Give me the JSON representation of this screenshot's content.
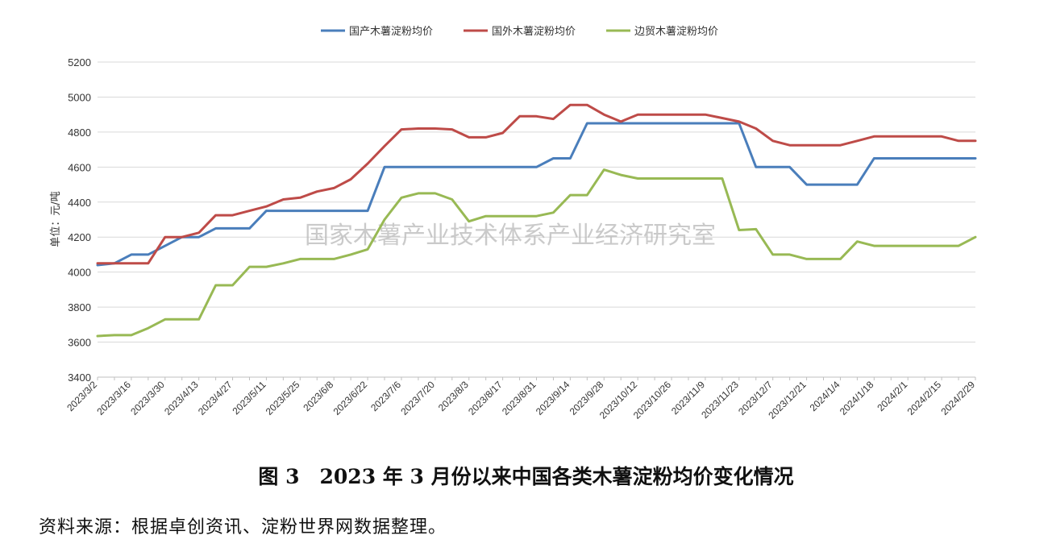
{
  "chart_data": {
    "type": "line",
    "ylabel": "单位：元/吨",
    "ylim": [
      3400,
      5200
    ],
    "yticks": [
      3400,
      3600,
      3800,
      4000,
      4200,
      4400,
      4600,
      4800,
      5000,
      5200
    ],
    "grid": "horizontal",
    "legend_position": "top-center",
    "x": [
      "2023/3/2",
      "2023/3/9",
      "2023/3/16",
      "2023/3/23",
      "2023/3/30",
      "2023/4/6",
      "2023/4/13",
      "2023/4/20",
      "2023/4/27",
      "2023/5/4",
      "2023/5/11",
      "2023/5/18",
      "2023/5/25",
      "2023/6/1",
      "2023/6/8",
      "2023/6/15",
      "2023/6/22",
      "2023/6/29",
      "2023/7/6",
      "2023/7/13",
      "2023/7/20",
      "2023/7/27",
      "2023/8/3",
      "2023/8/10",
      "2023/8/17",
      "2023/8/24",
      "2023/8/31",
      "2023/9/7",
      "2023/9/14",
      "2023/9/21",
      "2023/9/28",
      "2023/10/5",
      "2023/10/12",
      "2023/10/19",
      "2023/10/26",
      "2023/11/2",
      "2023/11/9",
      "2023/11/16",
      "2023/11/23",
      "2023/11/30",
      "2023/12/7",
      "2023/12/14",
      "2023/12/21",
      "2023/12/28",
      "2024/1/4",
      "2024/1/11",
      "2024/1/18",
      "2024/1/25",
      "2024/2/1",
      "2024/2/8",
      "2024/2/15",
      "2024/2/22",
      "2024/2/29"
    ],
    "xtick_labels": [
      "2023/3/2",
      "2023/3/16",
      "2023/3/30",
      "2023/4/13",
      "2023/4/27",
      "2023/5/11",
      "2023/5/25",
      "2023/6/8",
      "2023/6/22",
      "2023/7/6",
      "2023/7/20",
      "2023/8/3",
      "2023/8/17",
      "2023/8/31",
      "2023/9/14",
      "2023/9/28",
      "2023/10/12",
      "2023/10/26",
      "2023/11/9",
      "2023/11/23",
      "2023/12/7",
      "2023/12/21",
      "2024/1/4",
      "2024/1/18",
      "2024/2/1",
      "2024/2/15",
      "2024/2/29"
    ],
    "series": [
      {
        "name": "国产木薯淀粉均价",
        "color": "#4a7ebb",
        "values": [
          4040,
          4050,
          4100,
          4100,
          4150,
          4200,
          4200,
          4250,
          4250,
          4250,
          4350,
          4350,
          4350,
          4350,
          4350,
          4350,
          4350,
          4600,
          4600,
          4600,
          4600,
          4600,
          4600,
          4600,
          4600,
          4600,
          4600,
          4650,
          4650,
          4850,
          4850,
          4850,
          4850,
          4850,
          4850,
          4850,
          4850,
          4850,
          4850,
          4600,
          4600,
          4600,
          4500,
          4500,
          4500,
          4500,
          4650,
          4650,
          4650,
          4650,
          4650,
          4650,
          4650
        ]
      },
      {
        "name": "国外木薯淀粉均价",
        "color": "#be4b48",
        "values": [
          4050,
          4050,
          4050,
          4050,
          4200,
          4200,
          4225,
          4325,
          4325,
          4350,
          4375,
          4415,
          4425,
          4460,
          4480,
          4530,
          4620,
          4720,
          4815,
          4820,
          4820,
          4815,
          4770,
          4770,
          4795,
          4890,
          4890,
          4875,
          4955,
          4955,
          4900,
          4860,
          4900,
          4900,
          4900,
          4900,
          4900,
          4880,
          4860,
          4820,
          4750,
          4725,
          4725,
          4725,
          4725,
          4750,
          4775,
          4775,
          4775,
          4775,
          4775,
          4750,
          4750
        ]
      },
      {
        "name": "边贸木薯淀粉均价",
        "color": "#98b954",
        "values": [
          3635,
          3640,
          3640,
          3680,
          3730,
          3730,
          3730,
          3925,
          3925,
          4030,
          4030,
          4050,
          4075,
          4075,
          4075,
          4100,
          4130,
          4300,
          4425,
          4450,
          4450,
          4415,
          4290,
          4320,
          4320,
          4320,
          4320,
          4340,
          4440,
          4440,
          4585,
          4555,
          4535,
          4535,
          4535,
          4535,
          4535,
          4535,
          4240,
          4245,
          4100,
          4100,
          4075,
          4075,
          4075,
          4175,
          4150,
          4150,
          4150,
          4150,
          4150,
          4150,
          4200
        ]
      }
    ]
  },
  "watermark": "国家木薯产业技术体系产业经济研究室",
  "caption": "图 3　2023 年 3 月份以来中国各类木薯淀粉均价变化情况",
  "source": "资料来源：根据卓创资讯、淀粉世界网数据整理。"
}
